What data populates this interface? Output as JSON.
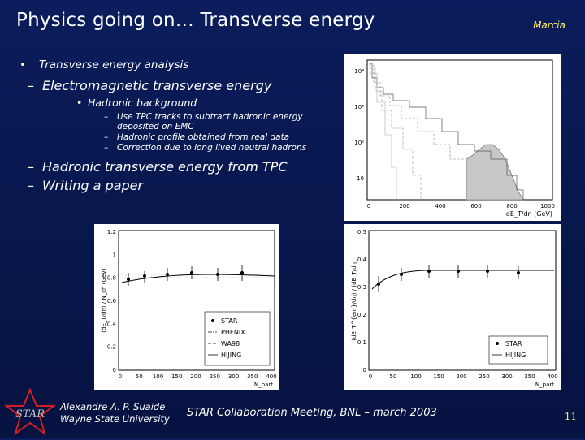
{
  "slide": {
    "title": "Physics going on… Transverse energy",
    "presenter": "Marcia",
    "bullets": {
      "main": "Transverse energy analysis",
      "em": "Electromagnetic transverse energy",
      "hadronic_bg": "Hadronic background",
      "sub1": "Use TPC tracks to subtract hadronic energy deposited on EMC",
      "sub2": "Hadronic profile obtained from real data",
      "sub3": "Correction due to long lived neutral hadrons",
      "hadronic_tpc": "Hadronic transverse energy from TPC",
      "paper": "Writing a paper"
    },
    "footer": {
      "author_line1": "Alexandre A. P. Suaide",
      "author_line2": "Wayne State University",
      "meeting": "STAR Collaboration Meeting, BNL – march 2003",
      "page_number": "11"
    },
    "logo_text": "STAR"
  },
  "plots": {
    "spectrum": {
      "xlabel": "dE_T/dη (GeV)",
      "xticks": [
        "0",
        "200",
        "400",
        "600",
        "800",
        "1000"
      ],
      "yticks": [
        "10⁴",
        "10³",
        "10²",
        "10"
      ]
    },
    "left": {
      "ylabel": "(dE_T/dη) / N_ch (GeV)",
      "xlabel": "N_part",
      "yticks": [
        "1.2",
        "1",
        "0.8",
        "0.6",
        "0.4",
        "0.2",
        "0"
      ],
      "xticks": [
        "0",
        "50",
        "100",
        "150",
        "200",
        "250",
        "300",
        "350",
        "400"
      ],
      "legend": [
        "STAR",
        "PHENIX",
        "WA98",
        "HIJING"
      ]
    },
    "right": {
      "ylabel": "(dE_T^{em}/dη) / (dE_T/dη)",
      "xlabel": "N_part",
      "yticks": [
        "0.5",
        "0.4",
        "0.3",
        "0.2",
        "0.1",
        "0"
      ],
      "xticks": [
        "0",
        "50",
        "100",
        "150",
        "200",
        "250",
        "300",
        "350",
        "400"
      ],
      "legend": [
        "STAR",
        "HIJING"
      ]
    }
  }
}
